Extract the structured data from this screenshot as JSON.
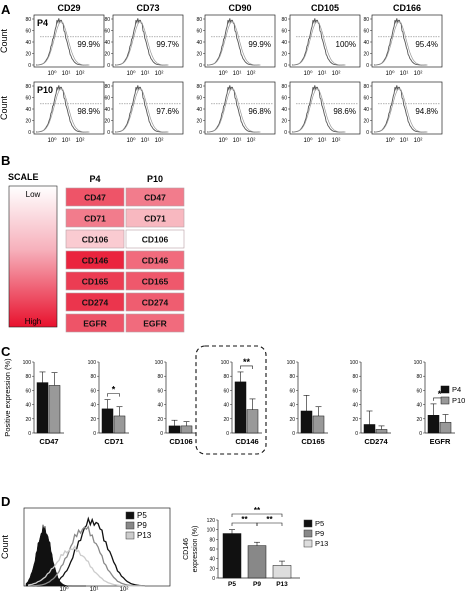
{
  "panels": {
    "a": "A",
    "b": "B",
    "c": "C",
    "d": "D"
  },
  "panel_a": {
    "y_label": "Count",
    "x_tick_labels": [
      "10⁰",
      "10¹",
      "10²"
    ],
    "markers": [
      "CD29",
      "CD73",
      "CD90",
      "CD105",
      "CD166"
    ],
    "rows": [
      {
        "label": "P4",
        "values": [
          "99.9%",
          "99.7%",
          "99.9%",
          "100%",
          "95.4%"
        ]
      },
      {
        "label": "P10",
        "values": [
          "98.9%",
          "97.6%",
          "96.8%",
          "98.6%",
          "94.8%"
        ]
      }
    ],
    "y_ticks": [
      [
        "80",
        "60",
        "40",
        "20",
        "0"
      ],
      [
        "80",
        "60",
        "40",
        "20",
        "0"
      ]
    ],
    "y_ticks_p10": [
      [
        "80",
        "60",
        "40",
        "20",
        "0"
      ],
      [
        "80",
        "60",
        "40",
        "20",
        "0"
      ],
      [
        "80",
        "60",
        "40",
        "20",
        "0"
      ],
      [
        "80",
        "60",
        "40",
        "20",
        "0"
      ],
      [
        "80",
        "60",
        "40",
        "20",
        "0"
      ]
    ]
  },
  "panel_b": {
    "scale_title": "SCALE",
    "scale_low": "Low",
    "scale_high": "High",
    "columns": [
      "P4",
      "P10"
    ],
    "colors": {
      "high": "#e8112d",
      "low": "#ffffff"
    },
    "rows": [
      {
        "marker": "CD47",
        "p4": 0.72,
        "p10": 0.55
      },
      {
        "marker": "CD71",
        "p4": 0.55,
        "p10": 0.3
      },
      {
        "marker": "CD106",
        "p4": 0.22,
        "p10": 0.0
      },
      {
        "marker": "CD146",
        "p4": 0.92,
        "p10": 0.62
      },
      {
        "marker": "CD165",
        "p4": 0.82,
        "p10": 0.7
      },
      {
        "marker": "CD274",
        "p4": 0.85,
        "p10": 0.68
      },
      {
        "marker": "EGFR",
        "p4": 0.72,
        "p10": 0.62
      }
    ]
  },
  "chart_data": [
    {
      "type": "bar",
      "ylabel": "Positive expression (%)",
      "ylim": [
        0,
        100
      ],
      "y_ticks": [
        "0",
        "20",
        "40",
        "60",
        "80",
        "100"
      ],
      "categories": [
        "CD47",
        "CD71",
        "CD106",
        "CD146",
        "CD165",
        "CD274",
        "EGFR"
      ],
      "series": [
        {
          "name": "P4",
          "color": "#111111",
          "values": [
            71,
            34,
            10,
            72,
            31,
            12,
            25
          ],
          "errors": [
            15,
            13,
            8,
            14,
            22,
            19,
            16
          ]
        },
        {
          "name": "P10",
          "color": "#999999",
          "values": [
            67,
            24,
            10,
            33,
            24,
            5,
            15
          ],
          "errors": [
            18,
            13,
            6,
            15,
            13,
            5,
            11
          ]
        }
      ],
      "significance": [
        {
          "category": "CD71",
          "label": "*"
        },
        {
          "category": "CD146",
          "label": "**"
        },
        {
          "category": "EGFR",
          "label": "*"
        }
      ],
      "highlighted_category": "CD146",
      "legend": "right"
    },
    {
      "type": "line",
      "ylabel": "Count",
      "x_tick_labels": [
        "10⁰",
        "10¹",
        "10²"
      ],
      "series": [
        {
          "name": "P5",
          "color": "#111111"
        },
        {
          "name": "P9",
          "color": "#888888"
        },
        {
          "name": "P13",
          "color": "#cccccc"
        }
      ],
      "legend": "top-right"
    },
    {
      "type": "bar",
      "ylabel": "CD146\nexpression (%)",
      "ylim": [
        0,
        120
      ],
      "y_ticks": [
        "0",
        "20",
        "40",
        "60",
        "80",
        "100",
        "120"
      ],
      "categories": [
        "P5",
        "P9",
        "P13"
      ],
      "values": [
        92,
        67,
        26
      ],
      "errors": [
        8,
        7,
        9
      ],
      "colors": [
        "#111111",
        "#888888",
        "#dddddd"
      ],
      "significance": [
        "**",
        "**",
        "**"
      ],
      "legend": "top-right"
    }
  ]
}
